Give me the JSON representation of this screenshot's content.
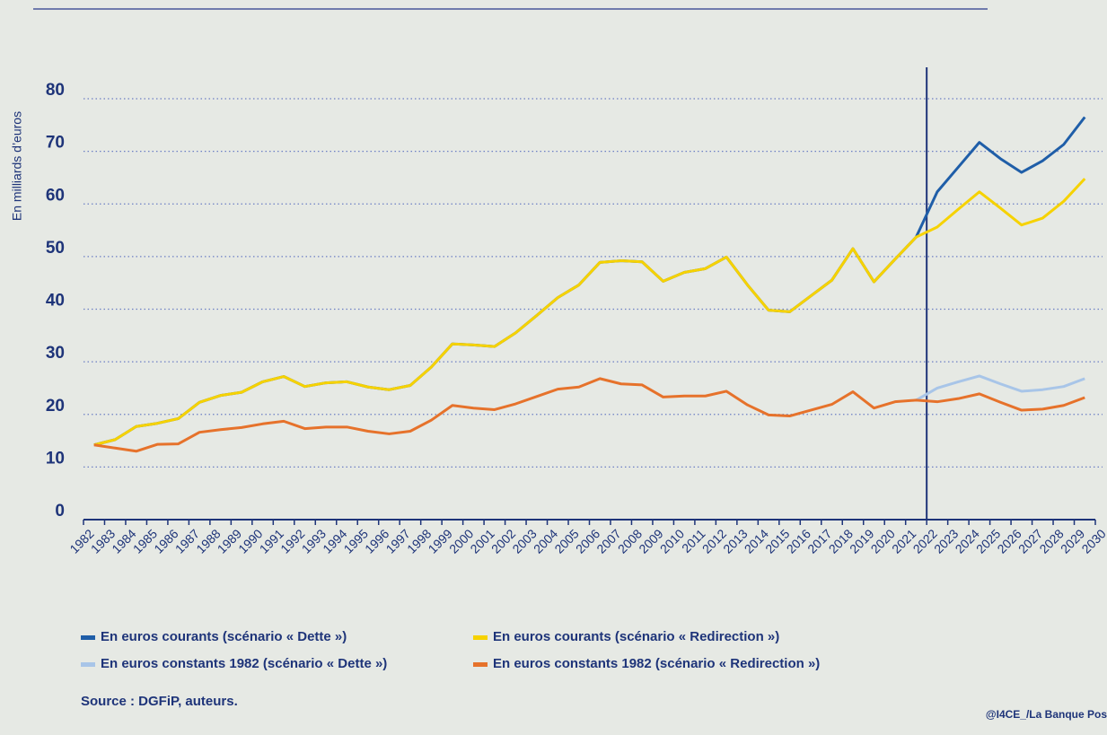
{
  "chart_data": {
    "type": "line",
    "ylabel": "En milliards d’euros",
    "categories": [
      "1982",
      "1983",
      "1984",
      "1985",
      "1986",
      "1987",
      "1988",
      "1989",
      "1990",
      "1991",
      "1992",
      "1993",
      "1994",
      "1995",
      "1996",
      "1997",
      "1998",
      "1999",
      "2000",
      "2001",
      "2002",
      "2003",
      "2004",
      "2005",
      "2006",
      "2007",
      "2008",
      "2009",
      "2010",
      "2011",
      "2012",
      "2013",
      "2014",
      "2015",
      "2016",
      "2017",
      "2018",
      "2019",
      "2020",
      "2021",
      "2022",
      "2023",
      "2024",
      "2025",
      "2026",
      "2027",
      "2028",
      "2029",
      "2030"
    ],
    "series": [
      {
        "name": "En euros courants (scénario « Dette »)",
        "color": "#1f5ea8",
        "values": [
          14.2,
          15.2,
          17.7,
          18.3,
          19.2,
          22.3,
          23.6,
          24.2,
          26.2,
          27.2,
          25.3,
          26.0,
          26.2,
          25.2,
          24.7,
          25.5,
          29.0,
          33.4,
          33.2,
          32.9,
          35.5,
          38.8,
          42.2,
          44.6,
          48.9,
          49.2,
          49.0,
          45.3,
          47.0,
          47.7,
          49.9,
          44.6,
          39.8,
          39.5,
          42.5,
          45.5,
          51.5,
          45.2,
          49.5,
          53.7,
          62.3,
          67.0,
          71.7,
          68.6,
          66.0,
          68.2,
          71.3,
          76.5,
          null
        ]
      },
      {
        "name": "En euros courants (scénario « Redirection »)",
        "color": "#f6d200",
        "values": [
          14.2,
          15.2,
          17.7,
          18.3,
          19.2,
          22.3,
          23.6,
          24.2,
          26.2,
          27.2,
          25.3,
          26.0,
          26.2,
          25.2,
          24.7,
          25.5,
          29.0,
          33.4,
          33.2,
          32.9,
          35.5,
          38.8,
          42.2,
          44.6,
          48.9,
          49.2,
          49.0,
          45.3,
          47.0,
          47.7,
          49.9,
          44.6,
          39.8,
          39.5,
          42.5,
          45.5,
          51.5,
          45.2,
          49.5,
          53.7,
          55.6,
          59.0,
          62.3,
          59.2,
          56.0,
          57.3,
          60.5,
          64.8,
          null
        ]
      },
      {
        "name": "En euros constants 1982 (scénario « Dette »)",
        "color": "#a8c5e8",
        "values": [
          null,
          null,
          null,
          null,
          null,
          null,
          null,
          null,
          null,
          null,
          null,
          null,
          null,
          null,
          null,
          null,
          null,
          null,
          null,
          null,
          null,
          null,
          null,
          null,
          null,
          null,
          null,
          null,
          null,
          null,
          null,
          null,
          null,
          null,
          null,
          null,
          null,
          null,
          null,
          22.7,
          25.0,
          26.2,
          27.3,
          25.8,
          24.4,
          24.7,
          25.3,
          26.8,
          null
        ]
      },
      {
        "name": "En euros constants 1982 (scénario « Redirection »)",
        "color": "#e6722b",
        "values": [
          14.2,
          13.6,
          13.0,
          14.3,
          14.4,
          16.6,
          17.1,
          17.5,
          18.2,
          18.7,
          17.3,
          17.6,
          17.6,
          16.8,
          16.3,
          16.8,
          18.9,
          21.7,
          21.2,
          20.9,
          22.0,
          23.4,
          24.8,
          25.2,
          26.8,
          25.8,
          25.6,
          23.3,
          23.5,
          23.5,
          24.4,
          21.8,
          19.9,
          19.7,
          20.8,
          21.9,
          24.3,
          21.2,
          22.4,
          22.7,
          22.4,
          23.0,
          23.9,
          22.3,
          20.8,
          21.0,
          21.7,
          23.2,
          null
        ]
      }
    ],
    "ylim": [
      0,
      80
    ],
    "yticks": [
      0,
      10,
      20,
      30,
      40,
      50,
      60,
      70,
      80
    ],
    "grid": true,
    "vline": "2022",
    "source": "Source : DGFiP, auteurs.",
    "credit": "@I4CE_/La Banque Pos"
  }
}
